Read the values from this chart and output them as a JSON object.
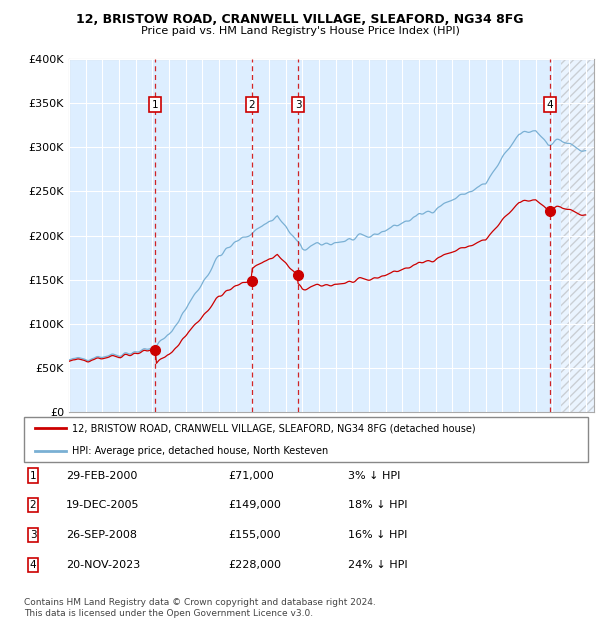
{
  "title1": "12, BRISTOW ROAD, CRANWELL VILLAGE, SLEAFORD, NG34 8FG",
  "title2": "Price paid vs. HM Land Registry's House Price Index (HPI)",
  "legend_line1": "12, BRISTOW ROAD, CRANWELL VILLAGE, SLEAFORD, NG34 8FG (detached house)",
  "legend_line2": "HPI: Average price, detached house, North Kesteven",
  "sale_dates_num": [
    2000.1667,
    2005.9583,
    2008.75,
    2023.875
  ],
  "sale_prices": [
    71000,
    149000,
    155000,
    228000
  ],
  "sale_labels": [
    "1",
    "2",
    "3",
    "4"
  ],
  "footnote1": "Contains HM Land Registry data © Crown copyright and database right 2024.",
  "footnote2": "This data is licensed under the Open Government Licence v3.0.",
  "red_color": "#cc0000",
  "blue_color": "#7ab0d4",
  "plot_bg": "#ddeeff",
  "hatch_start": 2024.5,
  "ylim": [
    0,
    400000
  ],
  "xlim_start": 1995.0,
  "xlim_end": 2026.5
}
